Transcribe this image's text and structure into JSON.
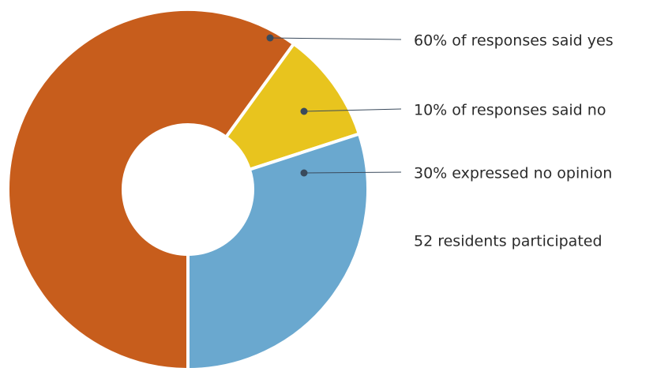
{
  "chart_data": {
    "type": "donut",
    "categories": [
      "60% of responses said yes",
      "10% of responses said no",
      "30% expressed no opinion"
    ],
    "values": [
      60,
      10,
      30
    ],
    "colors": [
      "#c75d1c",
      "#e8c41e",
      "#6aa8cf"
    ],
    "annotation": "52 residents participated"
  }
}
